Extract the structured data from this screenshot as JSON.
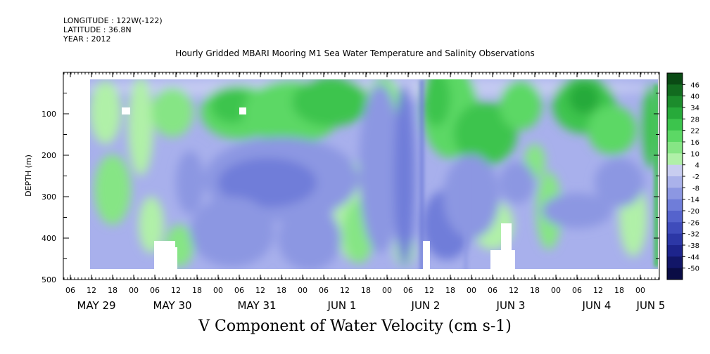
{
  "header": {
    "longitude": "LONGITUDE : 122W(-122)",
    "latitude": "LATITUDE : 36.8N",
    "year": "YEAR : 2012"
  },
  "title": "Hourly Gridded MBARI Mooring M1 Sea Water Temperature and Salinity Observations",
  "footer": "V Component of Water Velocity (cm s-1)",
  "chart_data": {
    "type": "heatmap",
    "title": "Hourly Gridded MBARI Mooring M1 Sea Water Temperature and Salinity Observations",
    "xlabel": "",
    "ylabel": "DEPTH (m)",
    "variable": "V Component of Water Velocity (cm s-1)",
    "y_ticks": [
      100,
      200,
      300,
      400,
      500
    ],
    "y_range": [
      0,
      500
    ],
    "y_inverted": true,
    "x_hour_ticks": [
      "06",
      "12",
      "18",
      "00",
      "06",
      "12",
      "18",
      "00",
      "06",
      "12",
      "18",
      "00",
      "06",
      "12",
      "18",
      "00",
      "06",
      "12",
      "18",
      "00",
      "06",
      "12",
      "18",
      "00",
      "06",
      "12",
      "18",
      "00",
      "06",
      "12",
      "18",
      "00",
      "06",
      "12",
      "18",
      "00"
    ],
    "x_day_labels": [
      "MAY 29",
      "MAY 30",
      "MAY 31",
      "JUN  1",
      "JUN  2",
      "JUN  3",
      "JUN  4",
      "JUN 5"
    ],
    "colorbar_labels": [
      "46",
      "40",
      "34",
      "28",
      "22",
      "16",
      "10",
      "4",
      "-2",
      "-8",
      "-14",
      "-20",
      "-26",
      "-32",
      "-38",
      "-44",
      "-50"
    ],
    "colorbar_colors": [
      "#0a4a14",
      "#126b1f",
      "#1c8c2c",
      "#27aa3a",
      "#3cc44d",
      "#5cd865",
      "#86e585",
      "#b0f0a8",
      "#c8cdf0",
      "#aab2ea",
      "#8c97e2",
      "#6f7dd9",
      "#5563cc",
      "#3f4cbb",
      "#2c37a6",
      "#1d248c",
      "#121668",
      "#0a0c45"
    ],
    "data_range": [
      -50,
      46
    ],
    "regions": [
      {
        "time": "May 29 12-18",
        "depth": "0-180",
        "v": 4
      },
      {
        "time": "May 29 18 - May 30 00",
        "depth": "200-350",
        "v": 10
      },
      {
        "time": "May 30 12 - May 31 12",
        "depth": "50-180",
        "v": 16
      },
      {
        "time": "May 30 18 - Jun 1 12",
        "depth": "200-450",
        "v": -14
      },
      {
        "time": "Jun 1 18 - Jun 2 06",
        "depth": "0-500",
        "v": -8
      },
      {
        "time": "Jun 2 12 - Jun 3 12",
        "depth": "20-220",
        "v": 22
      },
      {
        "time": "Jun 2 12 - Jun 3 18",
        "depth": "250-500",
        "v": -14
      },
      {
        "time": "Jun 3 06-12",
        "depth": "300-420",
        "v": 10
      },
      {
        "time": "Jun 4 00-18",
        "depth": "40-200",
        "v": 22
      },
      {
        "time": "Jun 4 06 - Jun 5 00",
        "depth": "240-320",
        "v": -8
      }
    ]
  }
}
